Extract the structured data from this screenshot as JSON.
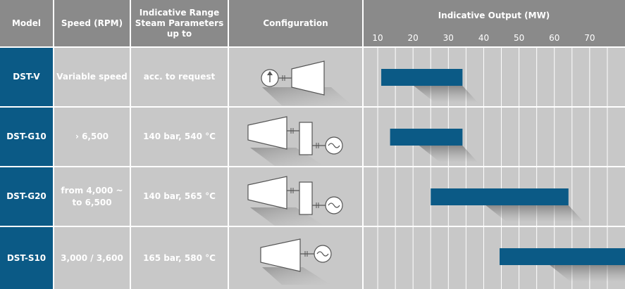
{
  "header": {
    "model": "Model",
    "speed": "Speed (RPM)",
    "range_line1": "Indicative Range",
    "range_line2": "Steam Parameters",
    "range_line3": "up to",
    "configuration": "Configuration"
  },
  "rows": [
    {
      "model": "DST-V",
      "speed_line1": "Variable speed",
      "speed_line2": "",
      "steam": "acc. to request",
      "config_icon": "compressor-with-arrow-drive-icon"
    },
    {
      "model": "DST-G10",
      "speed_line1": "› 6,500",
      "speed_line2": "",
      "steam": "140 bar, 540 °C",
      "config_icon": "turbine-gearbox-generator-icon"
    },
    {
      "model": "DST-G20",
      "speed_line1": "from 4,000 ~",
      "speed_line2": "to 6,500",
      "steam": "140 bar, 565 °C",
      "config_icon": "turbine-gearbox-generator-icon"
    },
    {
      "model": "DST-S10",
      "speed_line1": "3,000 / 3,600",
      "speed_line2": "",
      "steam": "165 bar, 580 °C",
      "config_icon": "turbine-generator-icon"
    }
  ],
  "chart_data": {
    "type": "bar",
    "orientation": "horizontal-range",
    "title": "Indicative Output (MW)",
    "x_ticks": [
      10,
      20,
      30,
      40,
      50,
      60,
      70
    ],
    "xlim": [
      6,
      80
    ],
    "grid": true,
    "categories": [
      "DST-V",
      "DST-G10",
      "DST-G20",
      "DST-S10"
    ],
    "ranges": [
      [
        11,
        34
      ],
      [
        13.5,
        34
      ],
      [
        25,
        64
      ],
      [
        44.5,
        80
      ]
    ],
    "colors": {
      "bar": "#0b5a86",
      "header": "#8a8a8a",
      "cell": "#c8c8c8",
      "model": "#0b5a86",
      "grid": "#ffffff"
    }
  }
}
